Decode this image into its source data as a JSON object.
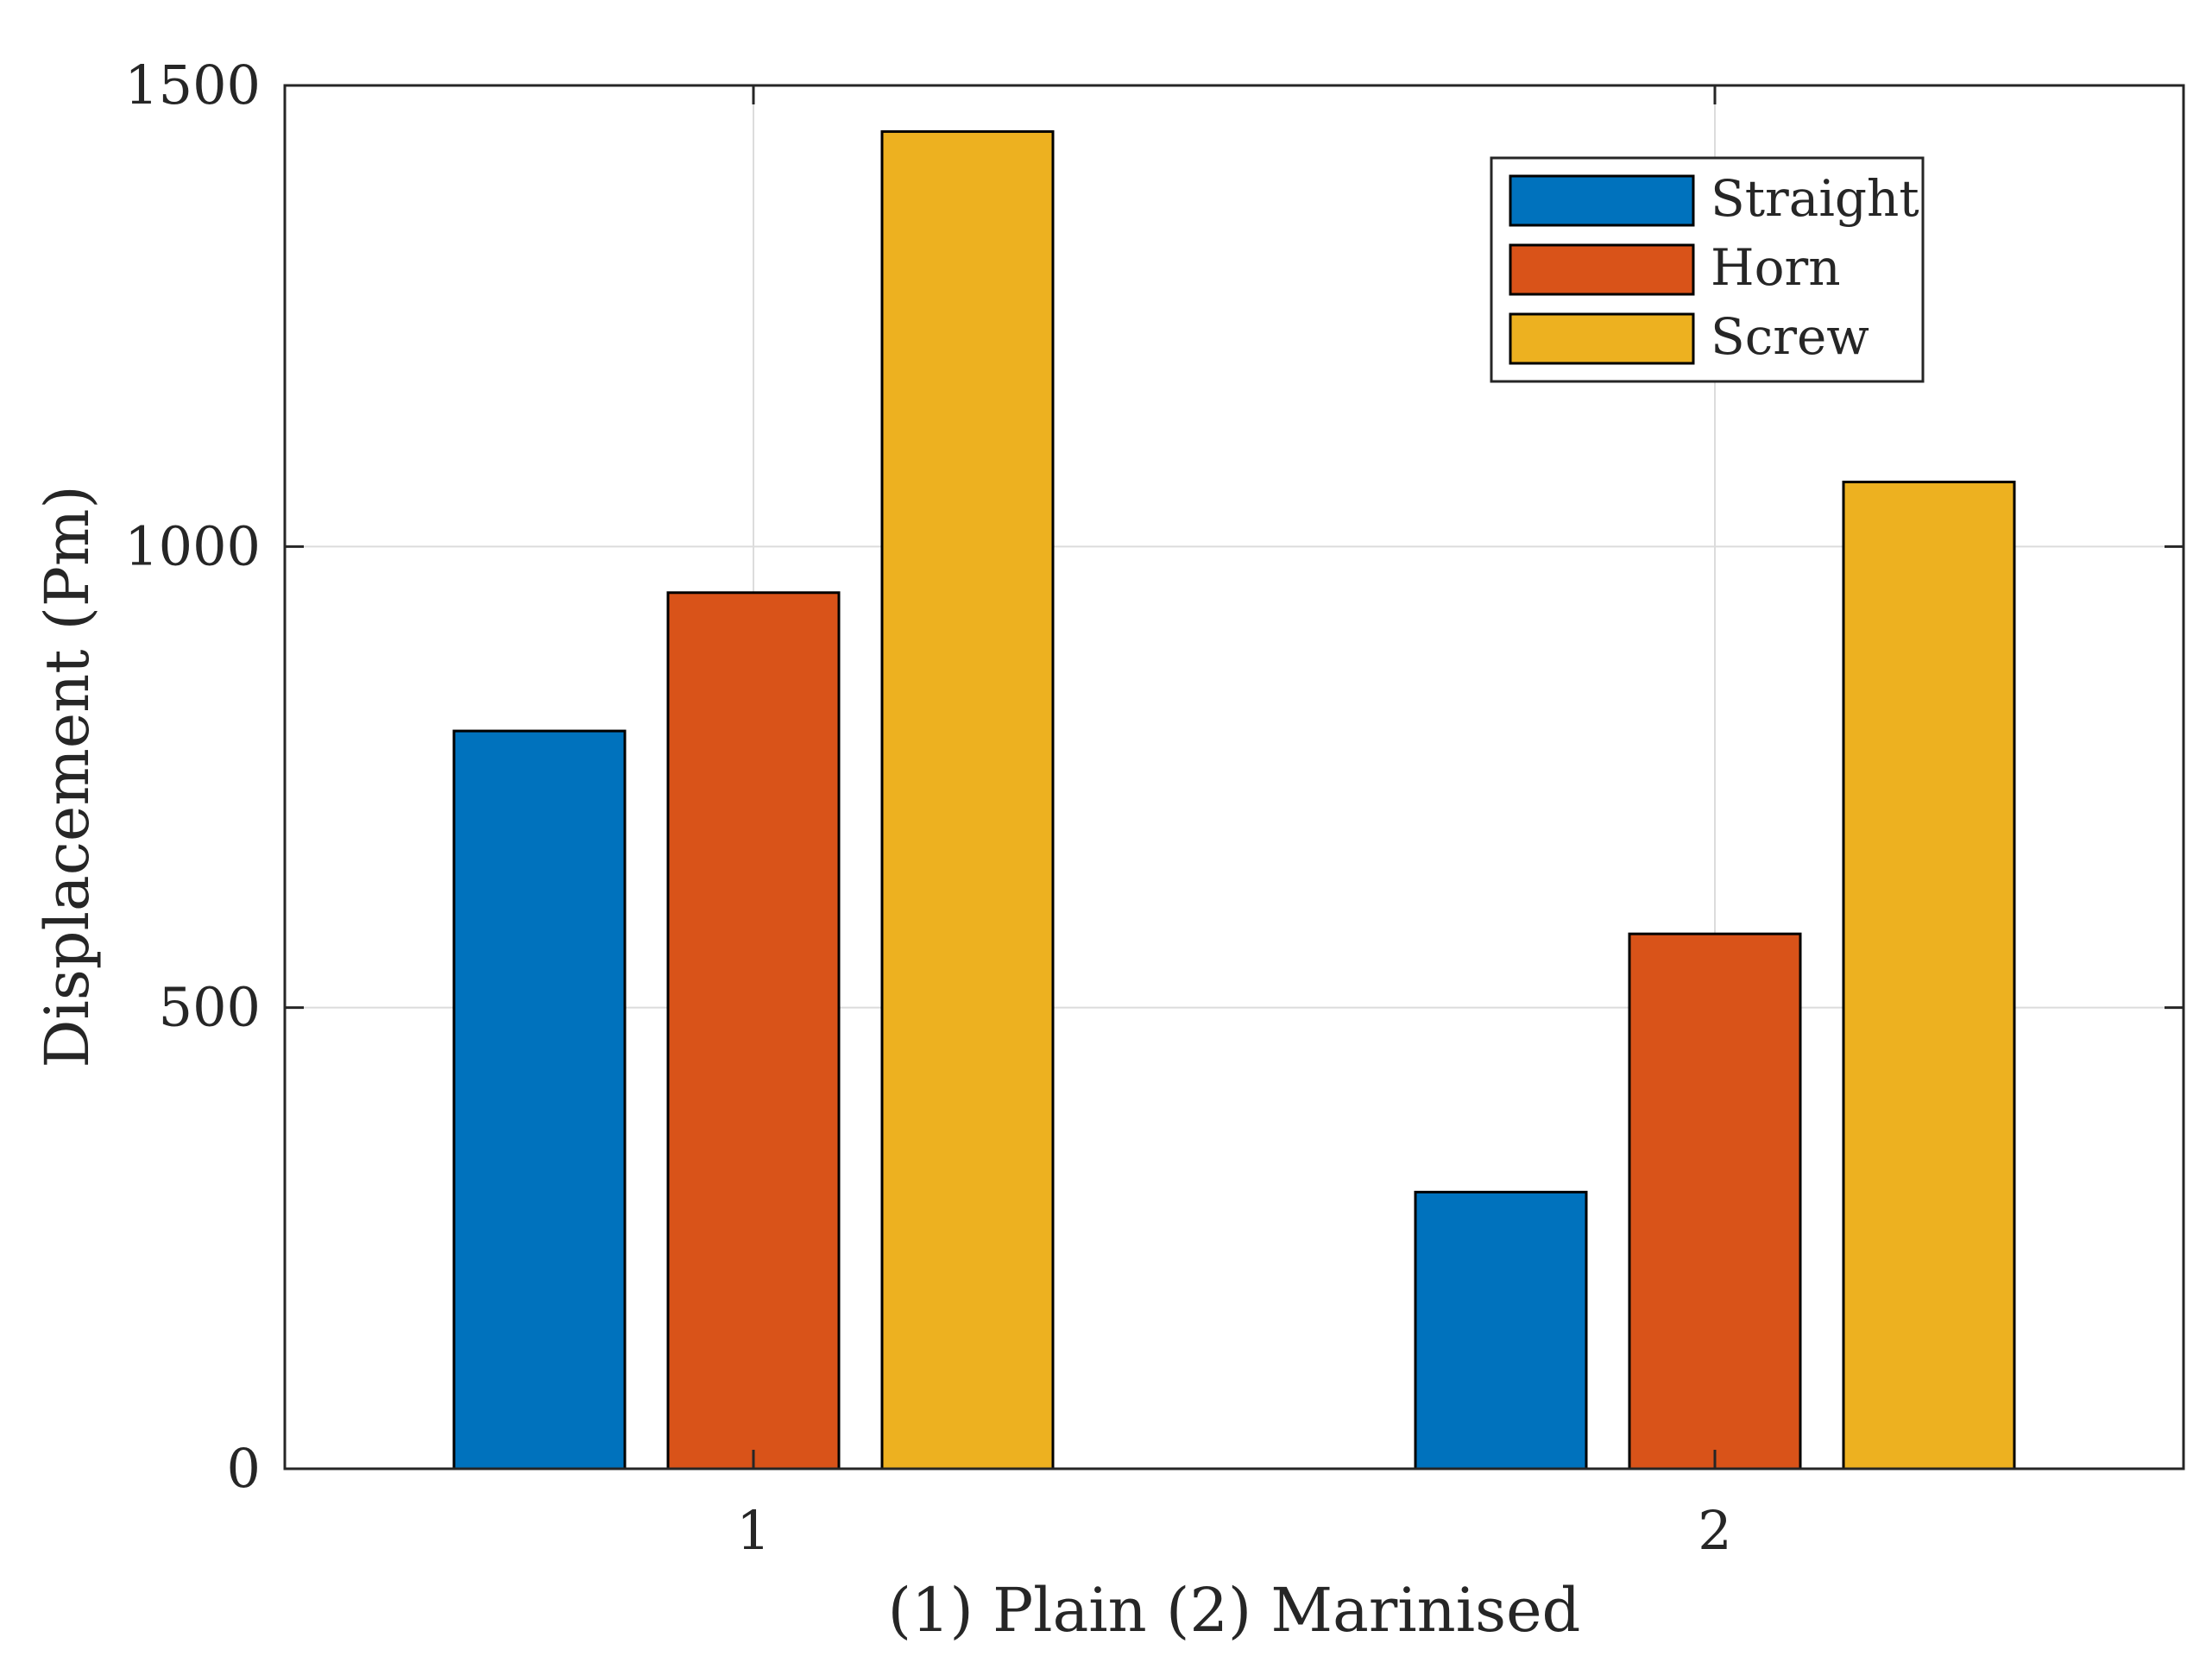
{
  "chart_data": {
    "type": "bar",
    "title": "",
    "xlabel": "(1) Plain (2) Marinised",
    "ylabel": "Displacement (Pm)",
    "categories": [
      "1",
      "2"
    ],
    "yticks": [
      "0",
      "500",
      "1000",
      "1500"
    ],
    "ylim": [
      0,
      1500
    ],
    "grid": true,
    "legend_position": "top-right",
    "series": [
      {
        "name": "Straight",
        "color": "#0072BD",
        "values": [
          800,
          300
        ]
      },
      {
        "name": "Horn",
        "color": "#D95319",
        "values": [
          950,
          580
        ]
      },
      {
        "name": "Screw",
        "color": "#EDB120",
        "values": [
          1450,
          1070
        ]
      }
    ]
  }
}
